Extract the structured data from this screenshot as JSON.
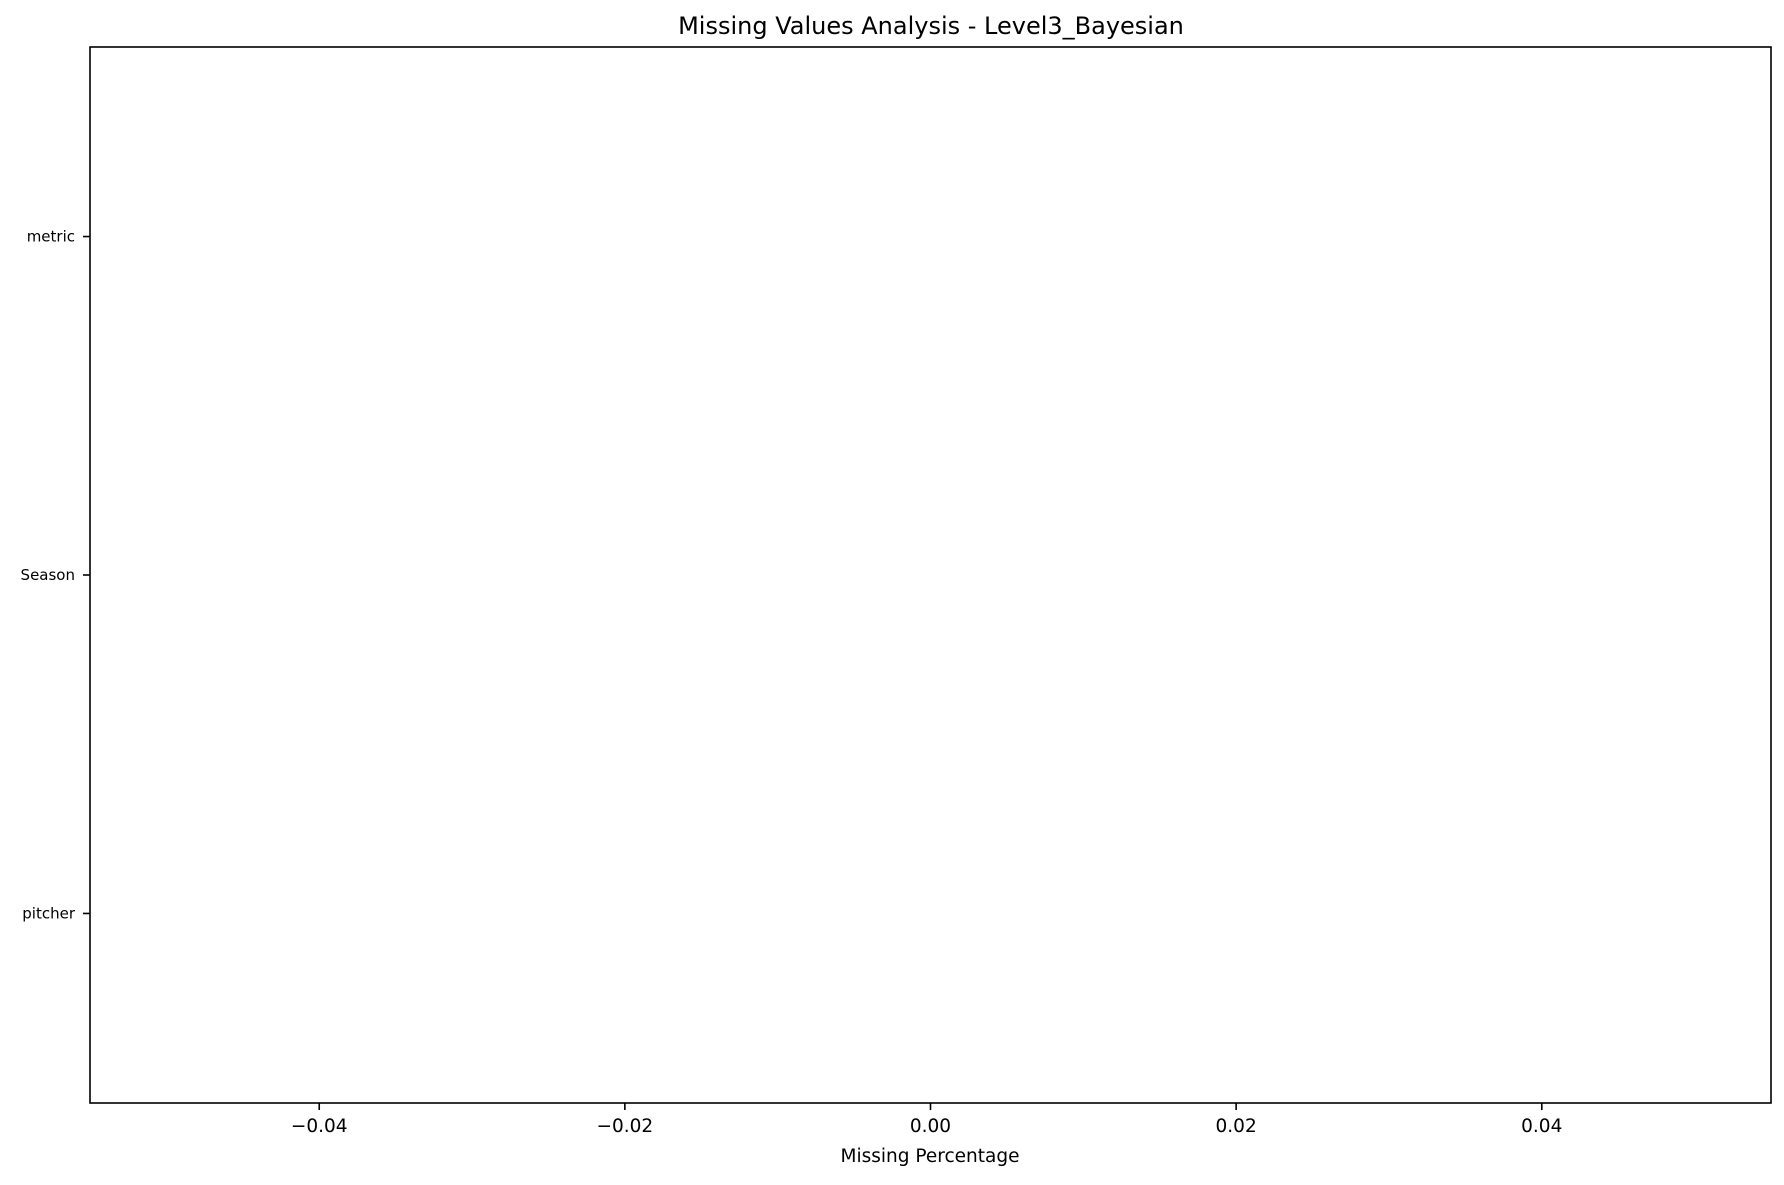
{
  "chart_data": {
    "type": "bar",
    "orientation": "horizontal",
    "title": "Missing Values Analysis - Level3_Bayesian",
    "xlabel": "Missing Percentage",
    "ylabel": "",
    "categories": [
      "pitcher",
      "Season",
      "metric"
    ],
    "values": [
      0,
      0,
      0
    ],
    "xlim": [
      -0.055,
      0.055
    ],
    "xticks": [
      -0.04,
      -0.02,
      0.0,
      0.02,
      0.04
    ],
    "xtick_labels": [
      "−0.04",
      "−0.02",
      "0.00",
      "0.02",
      "0.04"
    ],
    "grid": false,
    "legend": "none",
    "bar_color": "#d62728"
  }
}
